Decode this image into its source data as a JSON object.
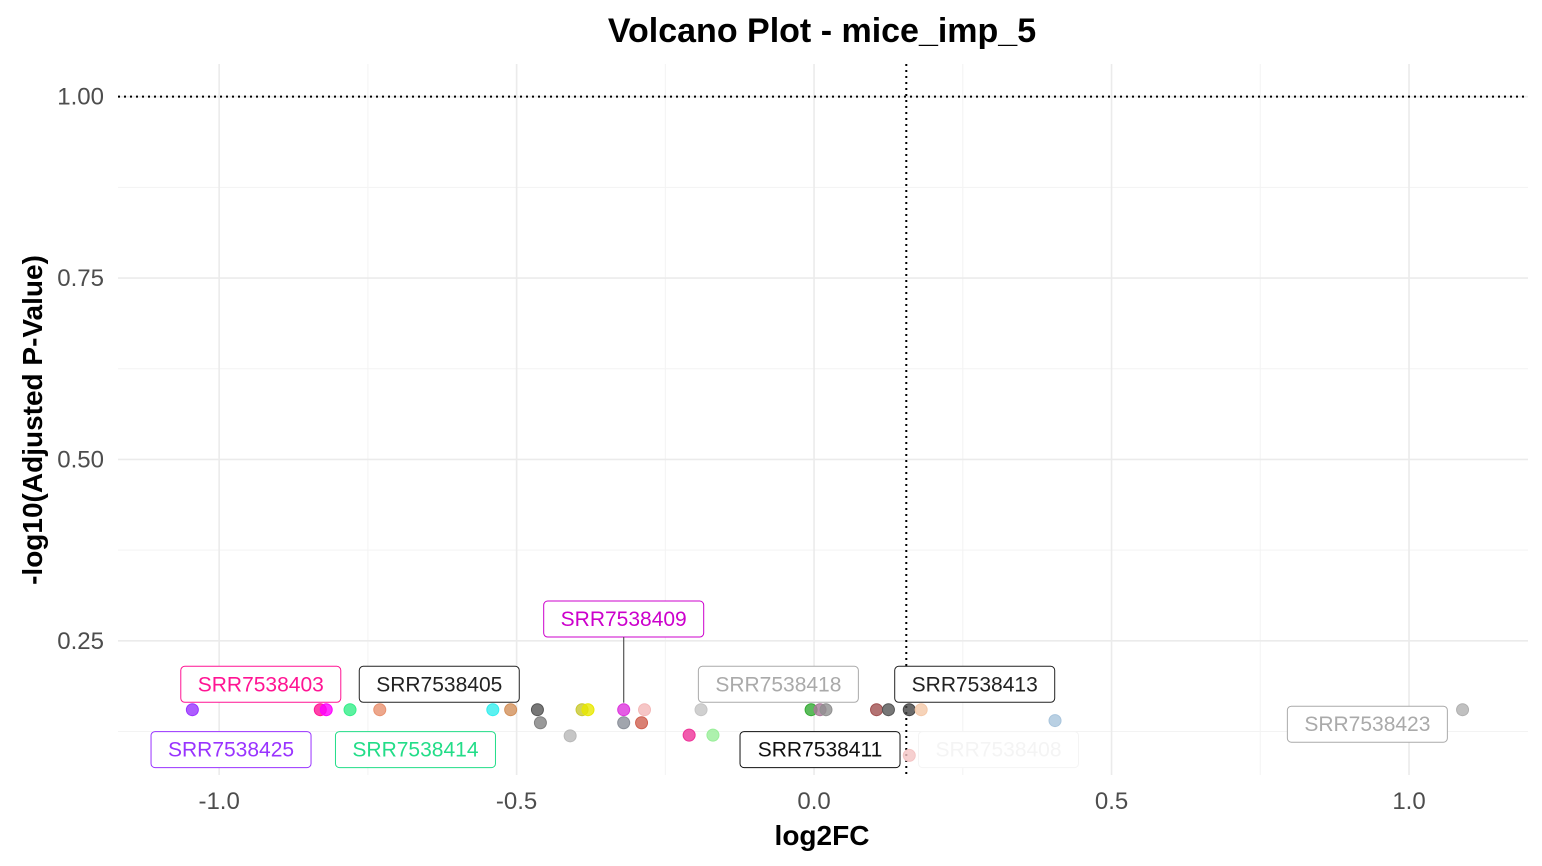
{
  "chart_data": {
    "type": "scatter",
    "title": "Volcano Plot - mice_imp_5",
    "xlabel": "log2FC",
    "ylabel": "-log10(Adjusted P-Value)",
    "xlim": [
      -1.17,
      1.2
    ],
    "ylim": [
      0.065,
      1.045
    ],
    "x_ticks": [
      -1.0,
      -0.5,
      0.0,
      0.5,
      1.0
    ],
    "x_tick_labels": [
      "-1.0",
      "-0.5",
      "0.0",
      "0.5",
      "1.0"
    ],
    "y_ticks": [
      0.25,
      0.5,
      0.75,
      1.0
    ],
    "y_tick_labels": [
      "0.25",
      "0.50",
      "0.75",
      "1.00"
    ],
    "grid": true,
    "threshold_lines": {
      "x": 0.155,
      "y": 1.0
    },
    "points": [
      {
        "x": -1.045,
        "y": 0.155,
        "color": "#9933ff"
      },
      {
        "x": -0.83,
        "y": 0.155,
        "color": "#ff1493"
      },
      {
        "x": -0.82,
        "y": 0.155,
        "color": "#ff00ff"
      },
      {
        "x": -0.78,
        "y": 0.155,
        "color": "#33ee88"
      },
      {
        "x": -0.73,
        "y": 0.155,
        "color": "#e8916f"
      },
      {
        "x": -0.54,
        "y": 0.155,
        "color": "#33eeee"
      },
      {
        "x": -0.51,
        "y": 0.155,
        "color": "#d2905a"
      },
      {
        "x": -0.465,
        "y": 0.155,
        "color": "#555555"
      },
      {
        "x": -0.46,
        "y": 0.137,
        "color": "#808080"
      },
      {
        "x": -0.41,
        "y": 0.119,
        "color": "#b8b8b8"
      },
      {
        "x": -0.39,
        "y": 0.155,
        "color": "#c8c830"
      },
      {
        "x": -0.38,
        "y": 0.155,
        "color": "#e8e800"
      },
      {
        "x": -0.32,
        "y": 0.155,
        "color": "#dd33dd"
      },
      {
        "x": -0.32,
        "y": 0.137,
        "color": "#8a8f99"
      },
      {
        "x": -0.29,
        "y": 0.137,
        "color": "#d06050"
      },
      {
        "x": -0.285,
        "y": 0.155,
        "color": "#f4b8b8"
      },
      {
        "x": -0.21,
        "y": 0.12,
        "color": "#ee3399"
      },
      {
        "x": -0.19,
        "y": 0.155,
        "color": "#c4c4c4"
      },
      {
        "x": -0.17,
        "y": 0.12,
        "color": "#99ee99"
      },
      {
        "x": -0.005,
        "y": 0.155,
        "color": "#33aa33"
      },
      {
        "x": 0.01,
        "y": 0.155,
        "color": "#a87898"
      },
      {
        "x": 0.02,
        "y": 0.155,
        "color": "#909090"
      },
      {
        "x": 0.105,
        "y": 0.155,
        "color": "#a05050"
      },
      {
        "x": 0.125,
        "y": 0.155,
        "color": "#555555"
      },
      {
        "x": 0.16,
        "y": 0.155,
        "color": "#444444"
      },
      {
        "x": 0.18,
        "y": 0.155,
        "color": "#f4c8a8"
      },
      {
        "x": 0.16,
        "y": 0.092,
        "color": "#f4c4c4"
      },
      {
        "x": 0.405,
        "y": 0.14,
        "color": "#a8c4dc"
      },
      {
        "x": 1.09,
        "y": 0.155,
        "color": "#b0b0b0"
      }
    ],
    "labels": [
      {
        "text": "SRR7538403",
        "color": "#ff1493",
        "x": -0.93,
        "y": 0.19
      },
      {
        "text": "SRR7538405",
        "color": "#222222",
        "x": -0.63,
        "y": 0.19
      },
      {
        "text": "SRR7538409",
        "color": "#cc00cc",
        "x": -0.32,
        "y": 0.28
      },
      {
        "text": "SRR7538418",
        "color": "#aaaaaa",
        "x": -0.06,
        "y": 0.19
      },
      {
        "text": "SRR7538413",
        "color": "#222222",
        "x": 0.27,
        "y": 0.19
      },
      {
        "text": "SRR7538425",
        "color": "#9933ff",
        "x": -0.98,
        "y": 0.1
      },
      {
        "text": "SRR7538414",
        "color": "#22dd88",
        "x": -0.67,
        "y": 0.1
      },
      {
        "text": "SRR7538411",
        "color": "#111111",
        "x": 0.01,
        "y": 0.1
      },
      {
        "text": "SRR7538408",
        "color": "#f4f4f4",
        "x": 0.31,
        "y": 0.1
      },
      {
        "text": "SRR7538423",
        "color": "#aaaaaa",
        "x": 0.93,
        "y": 0.135
      }
    ]
  }
}
